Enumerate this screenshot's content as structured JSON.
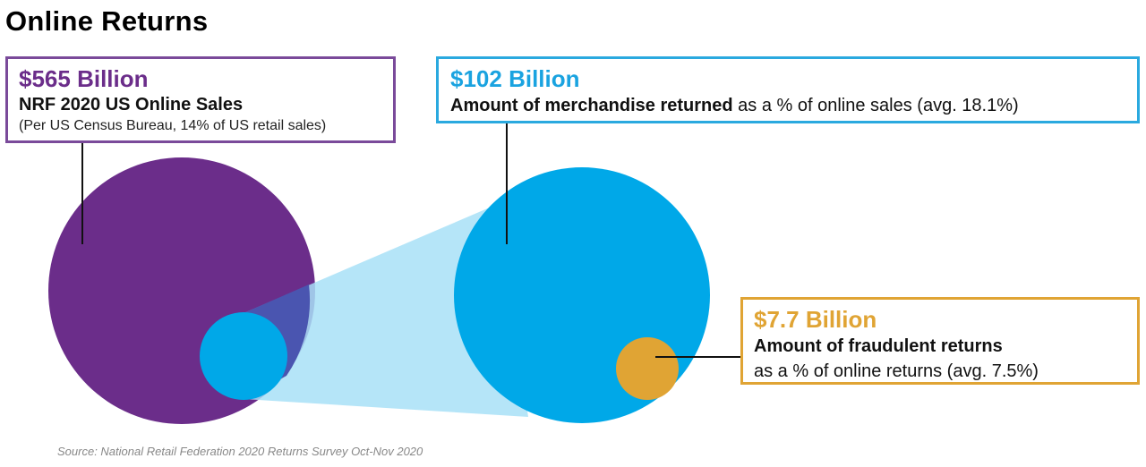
{
  "title": "Online Returns",
  "colors": {
    "purple": "#6b2d8a",
    "blue": "#00a8e8",
    "light_blue": "#a8e0f7",
    "gold": "#e0a434",
    "overlap": "#4a55b0"
  },
  "sales": {
    "amount": "$565 Billion",
    "label": "NRF 2020 US Online Sales",
    "note": "(Per US Census Bureau, 14% of US retail sales)"
  },
  "returns": {
    "amount": "$102 Billion",
    "label_bold": "Amount of merchandise returned",
    "label_rest": " as a % of online sales (avg. 18.1%)"
  },
  "fraud": {
    "amount": "$7.7 Billion",
    "label_bold": "Amount of fraudulent returns",
    "label_rest": "as a % of online returns (avg. 7.5%)"
  },
  "source": "Source: National Retail Federation 2020 Returns Survey Oct-Nov 2020"
}
